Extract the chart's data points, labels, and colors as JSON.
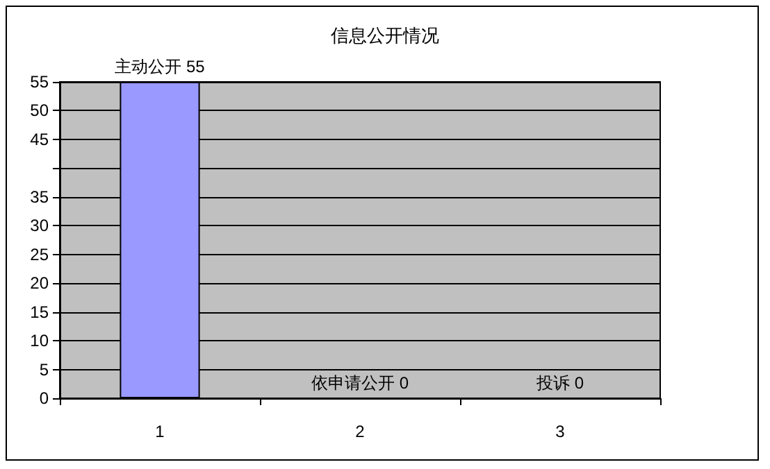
{
  "chart_data": {
    "type": "bar",
    "title": "信息公开情况",
    "categories": [
      "1",
      "2",
      "3"
    ],
    "values": [
      55,
      0,
      0
    ],
    "value_labels": [
      "主动公开 55",
      "依申请公开 0",
      "投诉 0"
    ],
    "color": "#9999ff",
    "ylim": [
      0,
      55
    ],
    "yticks": [
      0,
      5,
      10,
      15,
      20,
      25,
      30,
      35,
      {
        "value": 40,
        "label": null
      },
      45,
      50,
      55
    ],
    "grid": "y"
  }
}
